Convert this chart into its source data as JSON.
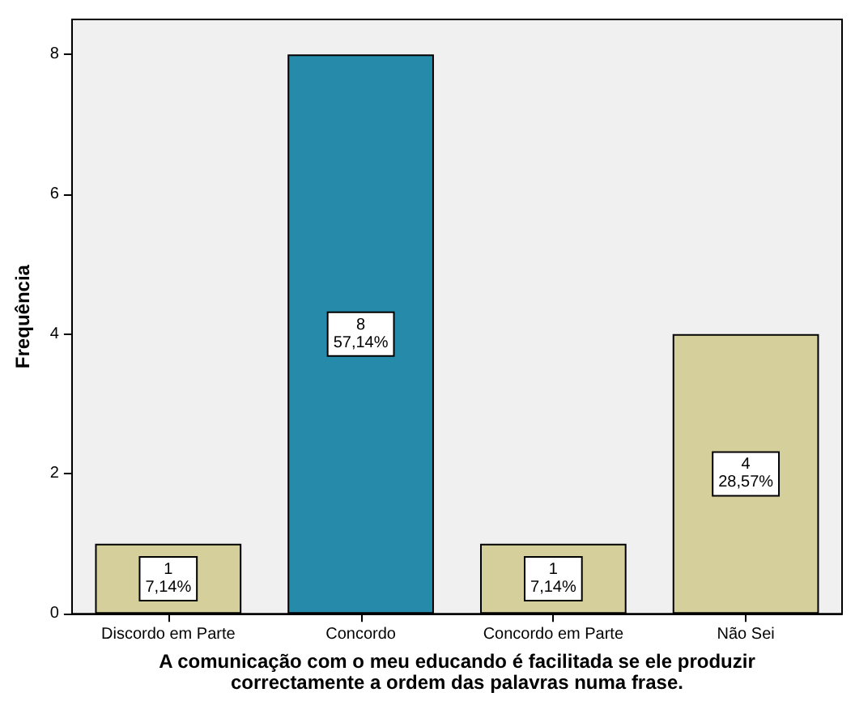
{
  "chart_data": {
    "type": "bar",
    "xlabel": "A comunicação com o meu educando é facilitada se ele produzir\ncorrectamente a ordem das palavras numa frase.",
    "ylabel": "Frequência",
    "categories": [
      "Discordo em Parte",
      "Concordo",
      "Concordo em Parte",
      "Não Sei"
    ],
    "values": [
      1,
      8,
      1,
      4
    ],
    "colors": [
      "#d5cf9b",
      "#268bab",
      "#d5cf9b",
      "#d5cf9b"
    ],
    "value_labels": [
      "1\n7,14%",
      "8\n57,14%",
      "1\n7,14%",
      "4\n28,57%"
    ],
    "ylim": [
      0,
      8.5
    ],
    "yticks": [
      0,
      2,
      4,
      6,
      8
    ],
    "grid": false
  }
}
